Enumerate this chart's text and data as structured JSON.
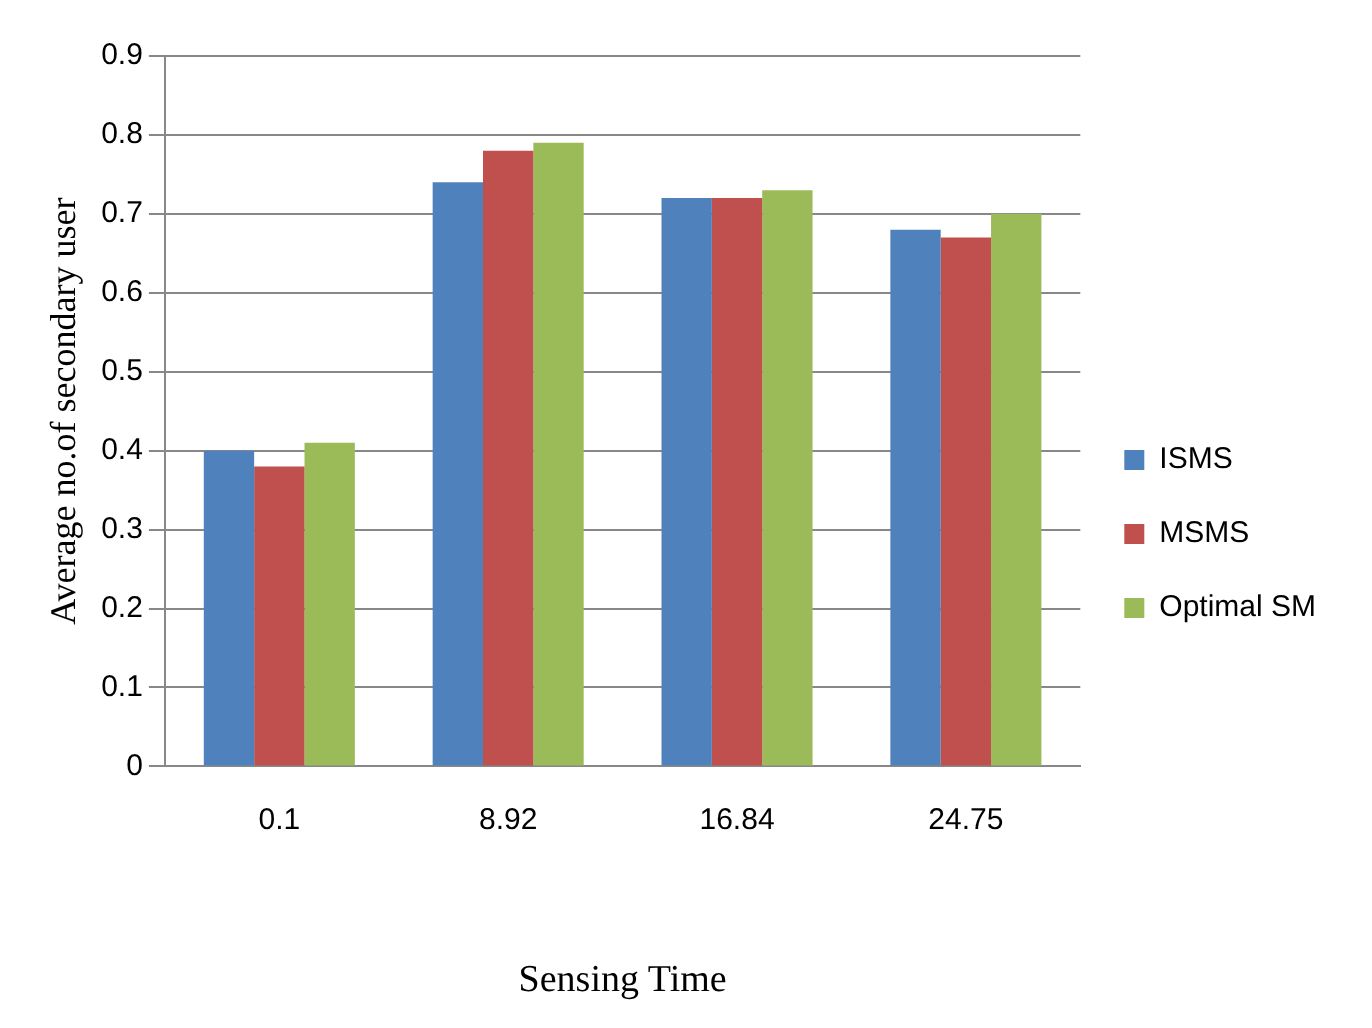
{
  "chart_data": {
    "type": "bar",
    "xlabel": "Sensing Time",
    "ylabel": "Average no.of secondary user",
    "categories": [
      "0.1",
      "8.92",
      "16.84",
      "24.75"
    ],
    "series": [
      {
        "name": "ISMS",
        "color": "#4f81bd",
        "values": [
          0.4,
          0.74,
          0.72,
          0.68
        ]
      },
      {
        "name": "MSMS",
        "color": "#c0504d",
        "values": [
          0.38,
          0.78,
          0.72,
          0.67
        ]
      },
      {
        "name": "Optimal SM",
        "color": "#9bbb59",
        "values": [
          0.41,
          0.79,
          0.73,
          0.7
        ]
      }
    ],
    "ylim": [
      0,
      0.9
    ],
    "yticks": [
      0,
      0.1,
      0.2,
      0.3,
      0.4,
      0.5,
      0.6,
      0.7,
      0.8,
      0.9
    ],
    "grid": "y",
    "legend": "right"
  }
}
